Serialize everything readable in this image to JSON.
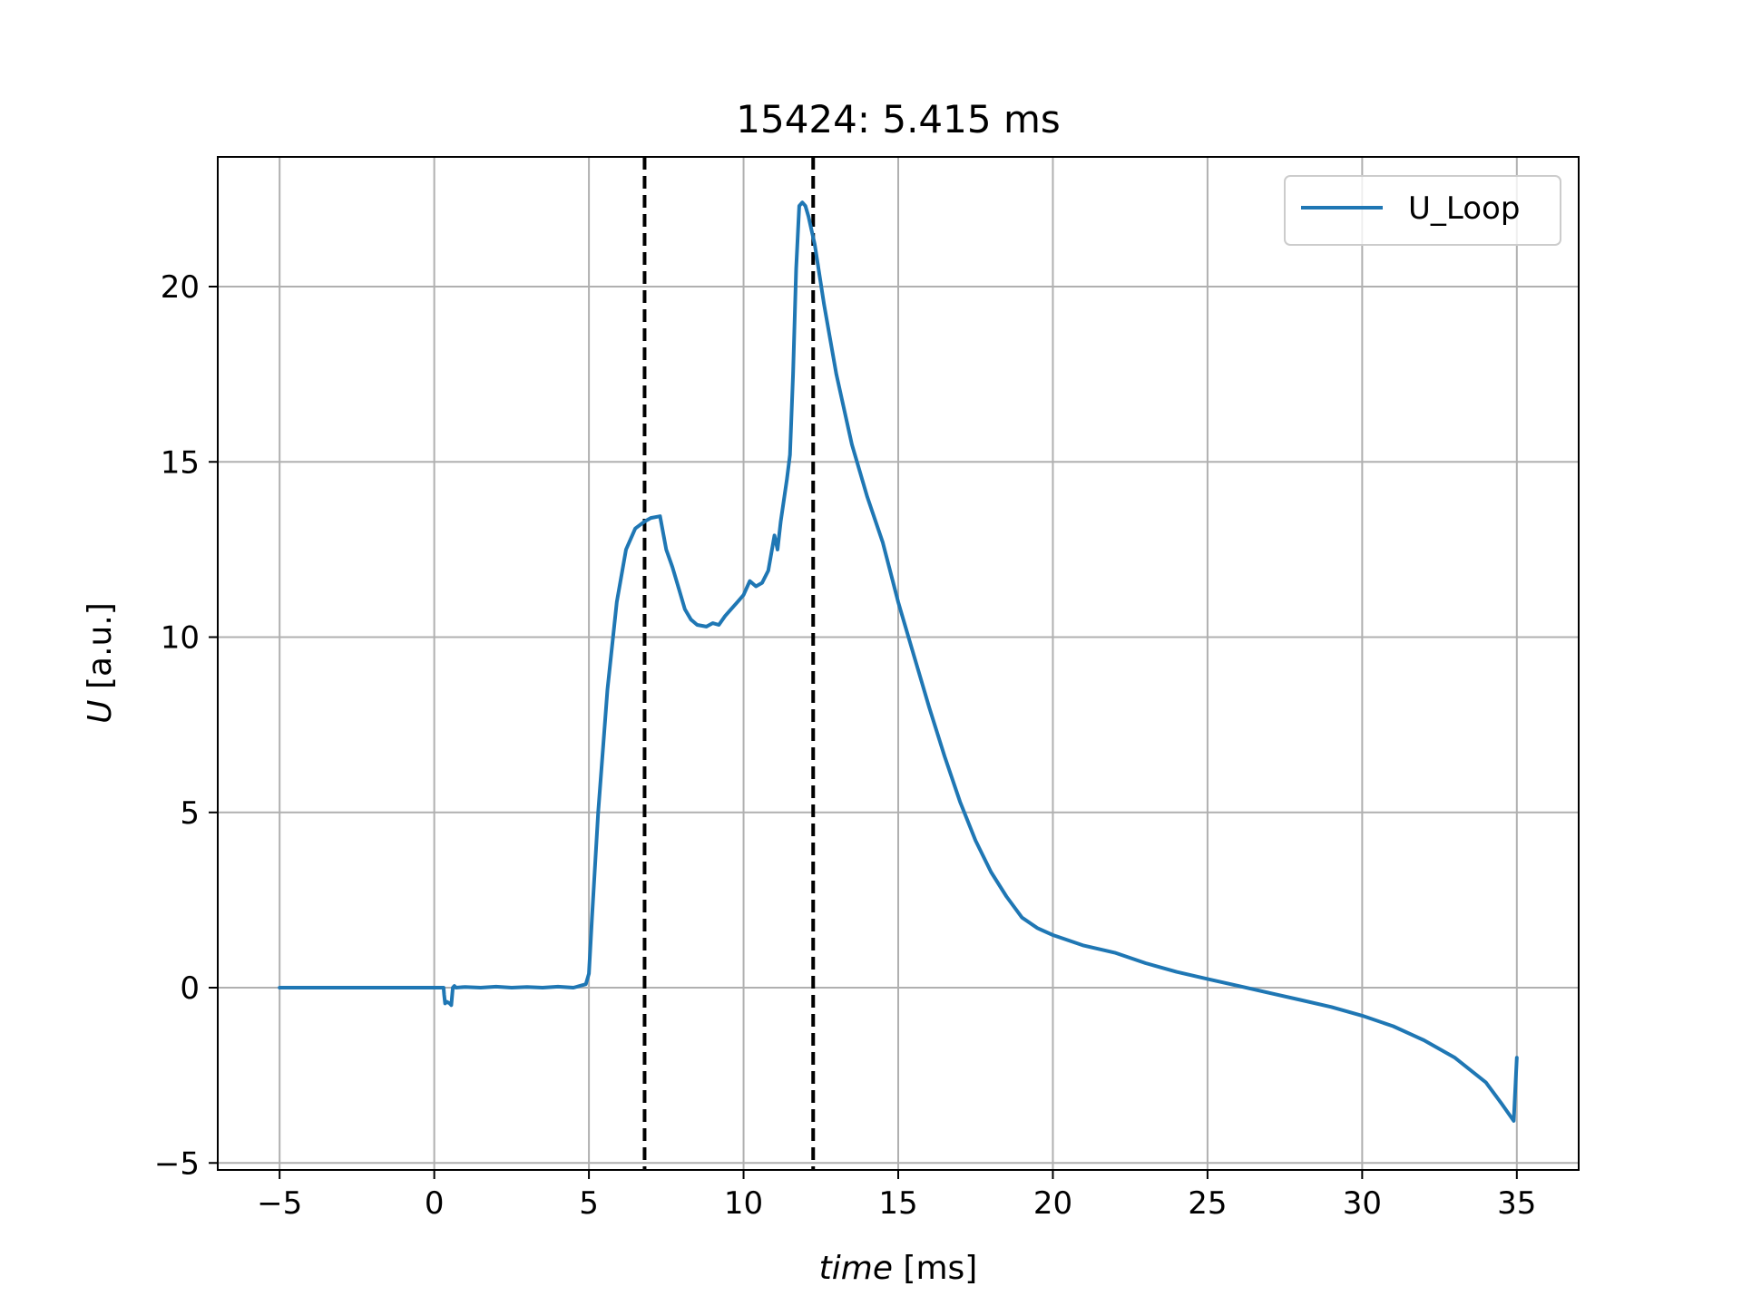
{
  "chart_data": {
    "type": "line",
    "title": "15424: 5.415 ms",
    "xlabel_italic": "time",
    "xlabel_unit": " [ms]",
    "ylabel_italic": "U",
    "ylabel_unit": " [a.u.]",
    "xlim": [
      -7,
      37
    ],
    "ylim": [
      -5.2,
      23.7
    ],
    "xticks": [
      -5,
      0,
      5,
      10,
      15,
      20,
      25,
      30,
      35
    ],
    "xtick_labels": [
      "−5",
      "0",
      "5",
      "10",
      "15",
      "20",
      "25",
      "30",
      "35"
    ],
    "yticks": [
      -5,
      0,
      5,
      10,
      15,
      20
    ],
    "ytick_labels": [
      "−5",
      "0",
      "5",
      "10",
      "15",
      "20"
    ],
    "grid": true,
    "legend_position": "top-right",
    "vlines": [
      6.8,
      12.25
    ],
    "vline_color": "#000000",
    "vline_style": "dashed",
    "series": [
      {
        "name": "U_Loop",
        "color": "#1f77b4",
        "x": [
          -5,
          0,
          0.3,
          0.32,
          0.35,
          0.4,
          0.5,
          0.55,
          0.6,
          0.65,
          0.7,
          1,
          1.5,
          2,
          2.5,
          3,
          3.5,
          4,
          4.5,
          4.9,
          5.0,
          5.1,
          5.3,
          5.6,
          5.9,
          6.2,
          6.5,
          6.8,
          7.0,
          7.3,
          7.5,
          7.7,
          7.9,
          8.1,
          8.3,
          8.5,
          8.8,
          9.0,
          9.2,
          9.4,
          9.6,
          9.8,
          10.0,
          10.2,
          10.4,
          10.6,
          10.8,
          11.0,
          11.1,
          11.2,
          11.3,
          11.4,
          11.5,
          11.6,
          11.7,
          11.8,
          11.9,
          12.0,
          12.1,
          12.3,
          12.6,
          13.0,
          13.5,
          14.0,
          14.5,
          15.0,
          15.5,
          16.0,
          16.5,
          17.0,
          17.5,
          18.0,
          18.5,
          19.0,
          19.5,
          20.0,
          21.0,
          22.0,
          23.0,
          24.0,
          25.0,
          26.0,
          27.0,
          28.0,
          29.0,
          30.0,
          31.0,
          32.0,
          33.0,
          34.0,
          34.5,
          34.9,
          35.0
        ],
        "y": [
          0.0,
          0.0,
          0.0,
          -0.2,
          -0.45,
          -0.4,
          -0.45,
          -0.5,
          0.0,
          0.05,
          0.0,
          0.02,
          0.0,
          0.03,
          0.0,
          0.02,
          0.0,
          0.03,
          0.0,
          0.1,
          0.4,
          2.0,
          5.0,
          8.5,
          11.0,
          12.5,
          13.1,
          13.3,
          13.4,
          13.45,
          12.5,
          12.0,
          11.4,
          10.8,
          10.5,
          10.35,
          10.3,
          10.4,
          10.35,
          10.6,
          10.8,
          11.0,
          11.2,
          11.6,
          11.45,
          11.55,
          11.9,
          12.9,
          12.5,
          13.3,
          13.9,
          14.5,
          15.2,
          17.5,
          20.5,
          22.3,
          22.4,
          22.3,
          22.0,
          21.2,
          19.5,
          17.5,
          15.5,
          14.0,
          12.7,
          11.0,
          9.5,
          8.0,
          6.6,
          5.3,
          4.2,
          3.3,
          2.6,
          2.0,
          1.7,
          1.5,
          1.2,
          1.0,
          0.7,
          0.45,
          0.25,
          0.05,
          -0.15,
          -0.35,
          -0.55,
          -0.8,
          -1.1,
          -1.5,
          -2.0,
          -2.7,
          -3.3,
          -3.8,
          -2.0
        ]
      }
    ]
  }
}
